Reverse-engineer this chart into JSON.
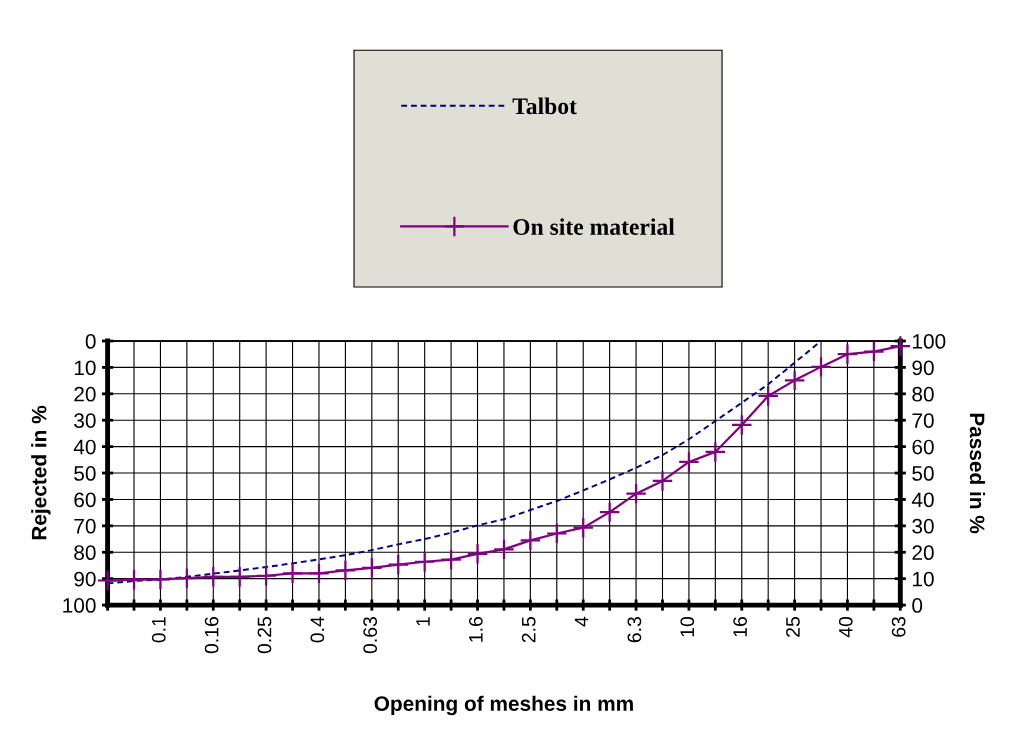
{
  "chart_data": {
    "type": "line",
    "xlabel": "Opening of meshes in mm",
    "ylabel": "Rejected in %",
    "y2label": "Passed in %",
    "categories": [
      null,
      null,
      "0.1",
      null,
      "0.16",
      null,
      "0.25",
      null,
      "0.4",
      null,
      "0.63",
      null,
      "1",
      null,
      "1.6",
      null,
      "2.5",
      null,
      "4",
      null,
      "6.3",
      null,
      "10",
      null,
      "16",
      null,
      "25",
      null,
      "40",
      null,
      "63"
    ],
    "series": [
      {
        "name": "Talbot",
        "color": "#000080",
        "axis": "y2",
        "line_style": "dashed",
        "marker": "none",
        "values": [
          8.2,
          9.1,
          9.7,
          10.7,
          11.9,
          13.1,
          14.4,
          15.8,
          17.3,
          18.9,
          20.8,
          23.0,
          25.0,
          27.4,
          30.2,
          32.5,
          36.0,
          39.4,
          43.4,
          47.6,
          52.0,
          56.8,
          62.8,
          69.7,
          76.6,
          83.6,
          91.8,
          100,
          null,
          null,
          null
        ]
      },
      {
        "name": "On site material",
        "color": "#800080",
        "axis": "y2",
        "line_style": "solid",
        "marker": "cross",
        "values": [
          9.3,
          9.6,
          9.7,
          10.2,
          10.7,
          10.7,
          11.1,
          12.0,
          12.0,
          13.1,
          14.1,
          15.3,
          16.4,
          17.2,
          19.4,
          21.1,
          24.5,
          27.1,
          29.3,
          35.2,
          42.2,
          47.0,
          54.2,
          58.0,
          68.2,
          79.2,
          85.1,
          90.2,
          95.0,
          96.0,
          98.1
        ]
      }
    ],
    "ylim": [
      100,
      0
    ],
    "yticks": [
      0,
      10,
      20,
      30,
      40,
      50,
      60,
      70,
      80,
      90,
      100
    ],
    "y2lim": [
      0,
      100
    ],
    "y2ticks": [
      0,
      10,
      20,
      30,
      40,
      50,
      60,
      70,
      80,
      90,
      100
    ],
    "grid": true,
    "legend": "top"
  }
}
